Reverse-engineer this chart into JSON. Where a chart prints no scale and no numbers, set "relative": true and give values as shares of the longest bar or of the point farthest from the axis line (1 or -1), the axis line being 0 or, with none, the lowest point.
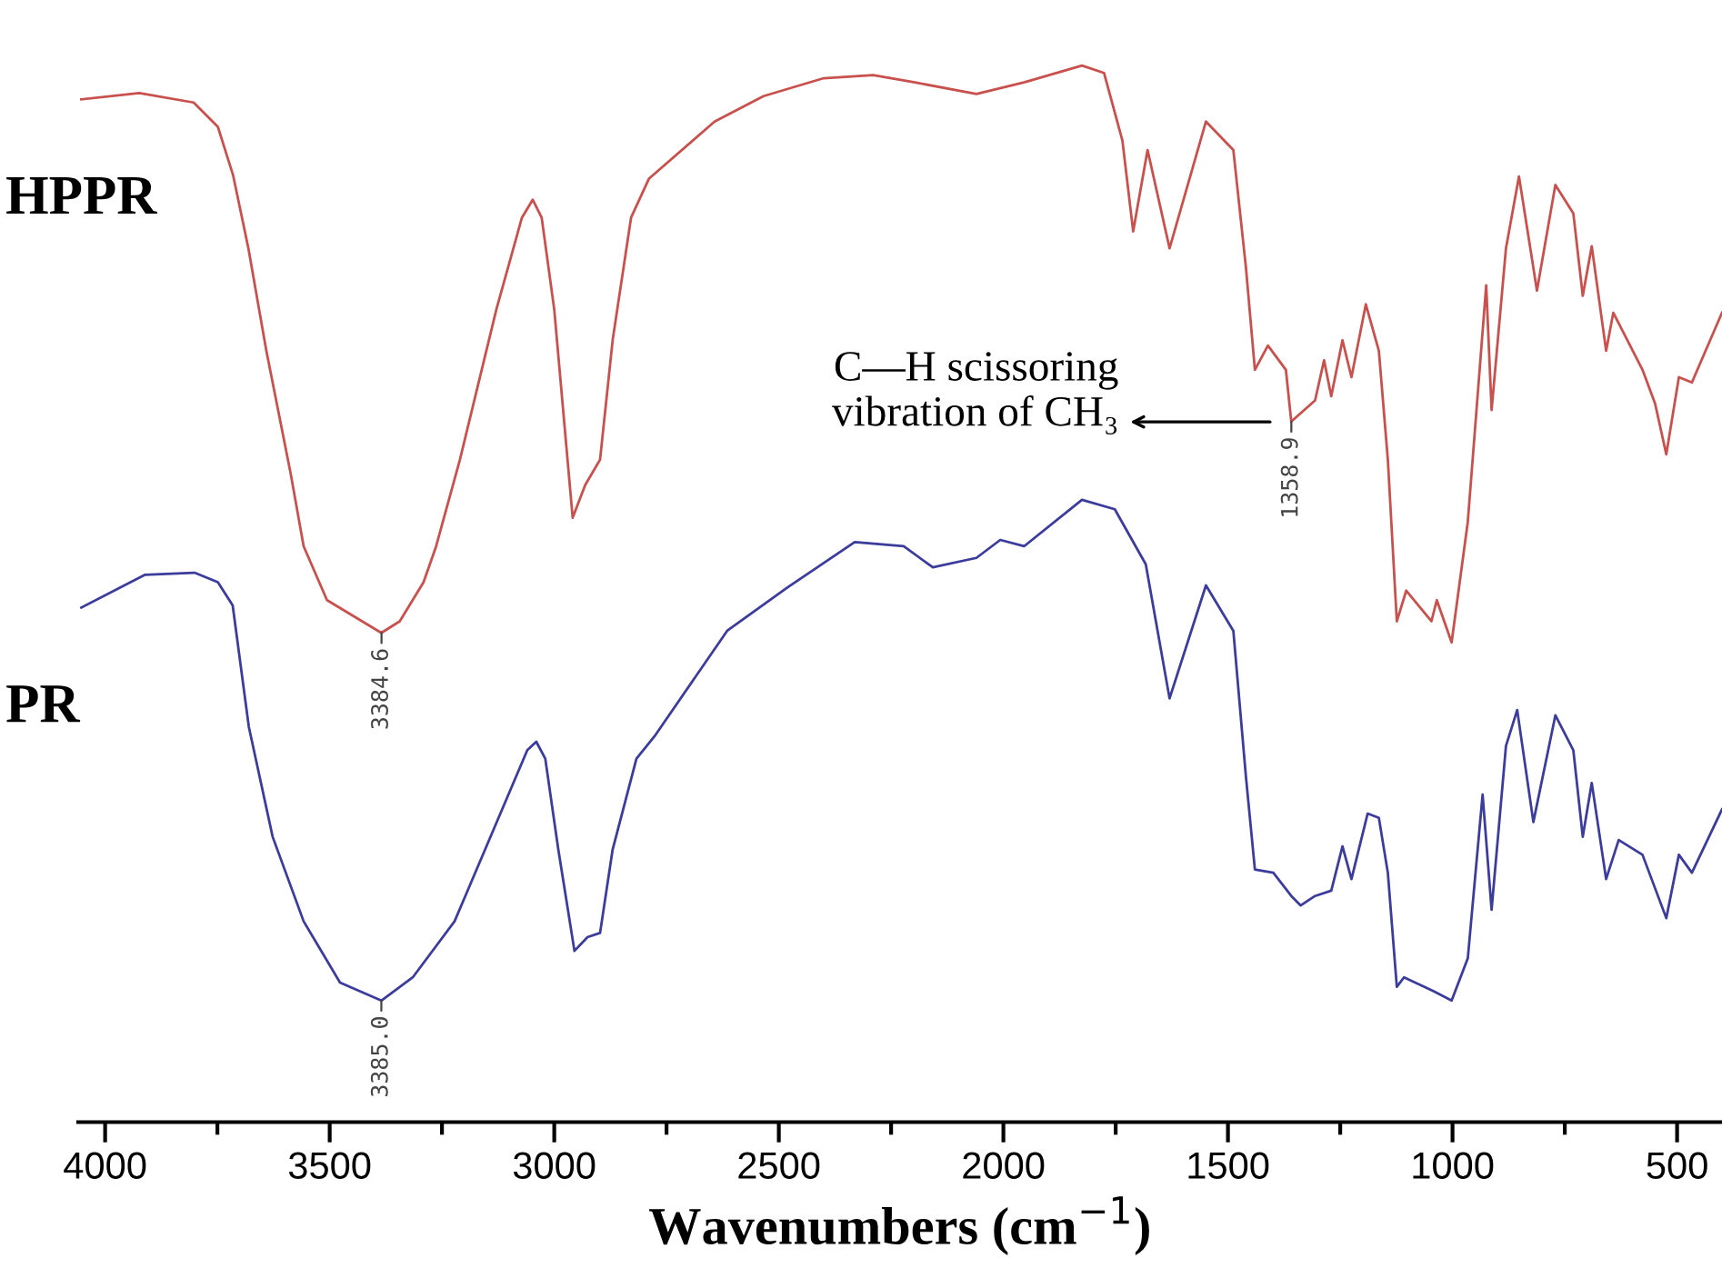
{
  "chart_data": {
    "type": "line",
    "relative": true,
    "xlabel": "Wavenumbers (cm$^{−1}$)",
    "xlim": [
      4060,
      400
    ],
    "xticks": [
      4000,
      {
        "value": 3750,
        "label": null
      },
      3500,
      {
        "value": 3250,
        "label": null
      },
      3000,
      {
        "value": 2750,
        "label": null
      },
      2500,
      {
        "value": 2250,
        "label": null
      },
      2000,
      {
        "value": 1750,
        "label": null
      },
      1500,
      {
        "value": 1250,
        "label": null
      },
      1000,
      {
        "value": 750,
        "label": null
      },
      500
    ],
    "tick_labels": "x",
    "grid": false,
    "legend": false,
    "line_style": "solid",
    "marker": "none",
    "series": [
      {
        "name": "HPPR",
        "color": "#c8504d",
        "x": [
          4053,
          3924,
          3803,
          3749,
          3715,
          3681,
          3641,
          3587,
          3558,
          3506,
          3385,
          3344,
          3291,
          3263,
          3210,
          3129,
          3072,
          3048,
          3028,
          3000,
          2959,
          2931,
          2898,
          2870,
          2829,
          2789,
          2643,
          2534,
          2400,
          2290,
          2197,
          2060,
          1954,
          1825,
          1776,
          1735,
          1711,
          1679,
          1630,
          1549,
          1488,
          1460,
          1440,
          1411,
          1371,
          1359,
          1306,
          1286,
          1270,
          1245,
          1225,
          1193,
          1164,
          1144,
          1124,
          1103,
          1047,
          1035,
          1002,
          966,
          925,
          913,
          881,
          852,
          812,
          771,
          731,
          710,
          690,
          658,
          642,
          577,
          549,
          524,
          496,
          467,
          400
        ],
        "values": [
          0.968,
          0.974,
          0.965,
          0.942,
          0.896,
          0.827,
          0.73,
          0.614,
          0.545,
          0.494,
          0.463,
          0.474,
          0.511,
          0.545,
          0.627,
          0.769,
          0.856,
          0.873,
          0.856,
          0.769,
          0.572,
          0.603,
          0.627,
          0.74,
          0.856,
          0.893,
          0.947,
          0.971,
          0.988,
          0.991,
          0.984,
          0.973,
          0.984,
          1.0,
          0.993,
          0.929,
          0.843,
          0.92,
          0.827,
          0.947,
          0.92,
          0.809,
          0.712,
          0.735,
          0.712,
          0.663,
          0.683,
          0.721,
          0.687,
          0.74,
          0.705,
          0.774,
          0.73,
          0.627,
          0.474,
          0.503,
          0.474,
          0.494,
          0.454,
          0.568,
          0.792,
          0.674,
          0.827,
          0.895,
          0.787,
          0.887,
          0.86,
          0.782,
          0.829,
          0.73,
          0.766,
          0.712,
          0.68,
          0.632,
          0.705,
          0.7,
          0.766
        ]
      },
      {
        "name": "PR",
        "color": "#3c3c9c",
        "x": [
          4053,
          3911,
          3801,
          3749,
          3716,
          3680,
          3627,
          3558,
          3477,
          3385,
          3315,
          3222,
          3129,
          3060,
          3040,
          3020,
          2991,
          2955,
          2926,
          2898,
          2870,
          2817,
          2777,
          2615,
          2481,
          2331,
          2222,
          2157,
          2060,
          2007,
          1954,
          1825,
          1752,
          1683,
          1630,
          1549,
          1488,
          1460,
          1440,
          1399,
          1359,
          1338,
          1306,
          1270,
          1245,
          1225,
          1189,
          1164,
          1144,
          1124,
          1108,
          1043,
          1002,
          966,
          933,
          913,
          881,
          856,
          820,
          771,
          731,
          710,
          690,
          658,
          630,
          577,
          524,
          496,
          467,
          400
        ],
        "values": [
          0.487,
          0.518,
          0.52,
          0.511,
          0.489,
          0.374,
          0.27,
          0.19,
          0.132,
          0.115,
          0.137,
          0.19,
          0.283,
          0.352,
          0.36,
          0.344,
          0.258,
          0.162,
          0.175,
          0.179,
          0.258,
          0.344,
          0.365,
          0.465,
          0.506,
          0.549,
          0.545,
          0.525,
          0.534,
          0.551,
          0.545,
          0.589,
          0.58,
          0.528,
          0.401,
          0.508,
          0.465,
          0.327,
          0.239,
          0.236,
          0.214,
          0.205,
          0.214,
          0.219,
          0.261,
          0.23,
          0.292,
          0.288,
          0.236,
          0.128,
          0.137,
          0.124,
          0.115,
          0.155,
          0.31,
          0.201,
          0.356,
          0.39,
          0.284,
          0.385,
          0.352,
          0.27,
          0.321,
          0.23,
          0.267,
          0.253,
          0.193,
          0.253,
          0.236,
          0.296
        ]
      }
    ],
    "annotations": [
      {
        "text": "3384.6",
        "x": 3384.6,
        "y": 0.463
      },
      {
        "text": "3385.0",
        "x": 3385.0,
        "y": 0.115
      },
      {
        "text": "1358.9",
        "x": 1358.9,
        "y": 0.663
      },
      "C—H scissoring\nvibration of CH₃"
    ]
  }
}
